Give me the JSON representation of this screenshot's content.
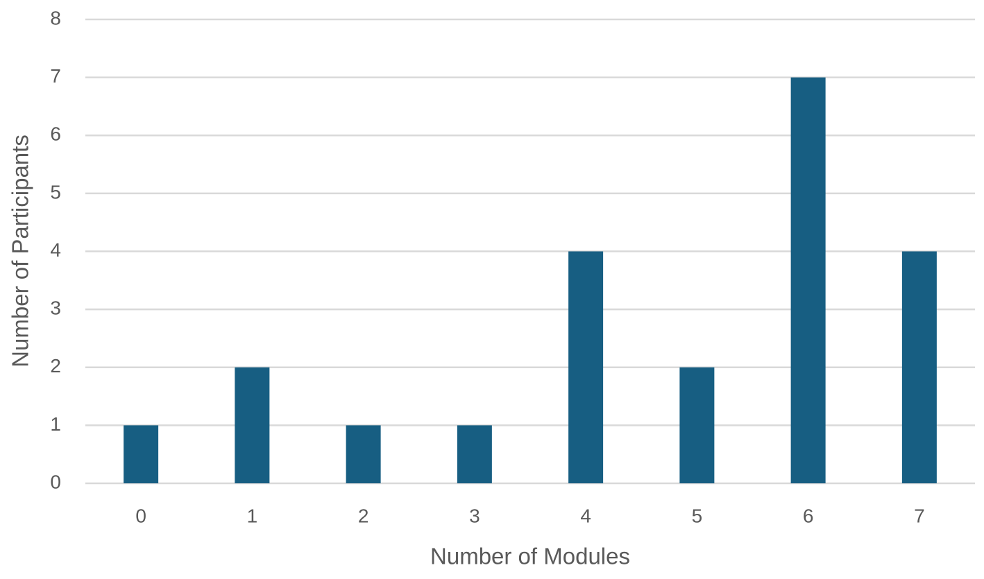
{
  "chart_data": {
    "type": "bar",
    "x_label": "Number of Modules",
    "y_label": "Number of Participants",
    "categories": [
      "0",
      "1",
      "2",
      "3",
      "4",
      "5",
      "6",
      "7"
    ],
    "values": [
      1,
      2,
      1,
      1,
      4,
      2,
      7,
      4
    ],
    "color": "#175e82",
    "ylim": [
      0,
      8
    ],
    "yticks": [
      0,
      1,
      2,
      3,
      4,
      5,
      6,
      7,
      8
    ],
    "grid": true
  }
}
